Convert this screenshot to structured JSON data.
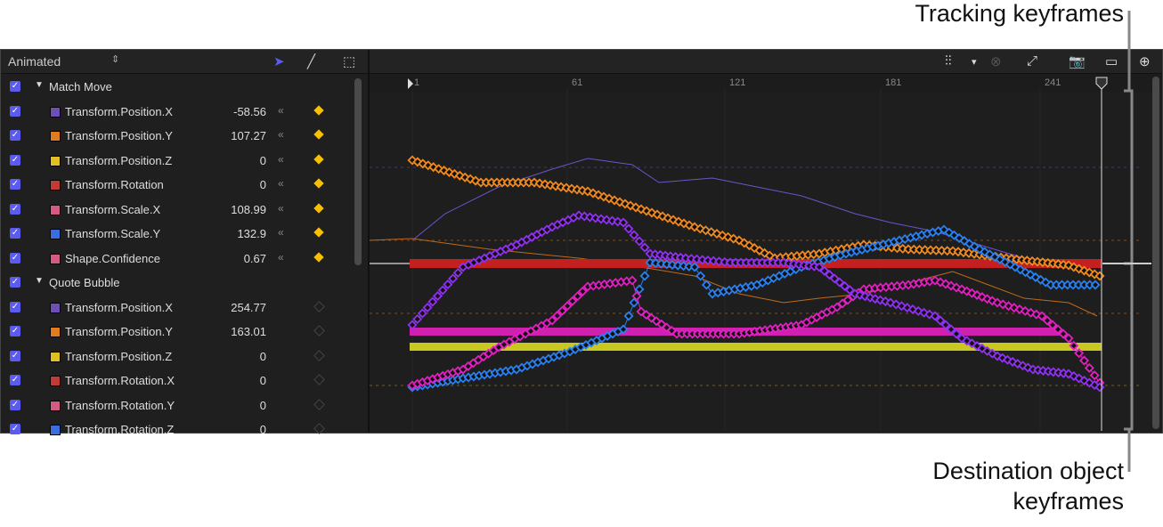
{
  "header": {
    "filter": "Animated"
  },
  "groups": [
    {
      "name": "Match Move",
      "rows": [
        {
          "label": "Transform.Position.X",
          "value": "-58.56",
          "color": "#6e4fb5",
          "keyframe": "filled"
        },
        {
          "label": "Transform.Position.Y",
          "value": "107.27",
          "color": "#e07b20",
          "keyframe": "filled"
        },
        {
          "label": "Transform.Position.Z",
          "value": "0",
          "color": "#e0c020",
          "keyframe": "filled"
        },
        {
          "label": "Transform.Rotation",
          "value": "0",
          "color": "#c23a36",
          "keyframe": "filled"
        },
        {
          "label": "Transform.Scale.X",
          "value": "108.99",
          "color": "#d35a80",
          "keyframe": "filled"
        },
        {
          "label": "Transform.Scale.Y",
          "value": "132.9",
          "color": "#3a6ee0",
          "keyframe": "filled"
        },
        {
          "label": "Shape.Confidence",
          "value": "0.67",
          "color": "#d35a80",
          "keyframe": "filled"
        }
      ]
    },
    {
      "name": "Quote Bubble",
      "rows": [
        {
          "label": "Transform.Position.X",
          "value": "254.77",
          "color": "#6e4fb5",
          "keyframe": "empty"
        },
        {
          "label": "Transform.Position.Y",
          "value": "163.01",
          "color": "#e07b20",
          "keyframe": "empty"
        },
        {
          "label": "Transform.Position.Z",
          "value": "0",
          "color": "#e0c020",
          "keyframe": "empty"
        },
        {
          "label": "Transform.Rotation.X",
          "value": "0",
          "color": "#c23a36",
          "keyframe": "empty"
        },
        {
          "label": "Transform.Rotation.Y",
          "value": "0",
          "color": "#d35a80",
          "keyframe": "empty"
        },
        {
          "label": "Transform.Rotation.Z",
          "value": "0",
          "color": "#3a6ee0",
          "keyframe": "empty"
        }
      ]
    }
  ],
  "ruler": [
    "1",
    "61",
    "121",
    "181",
    "241"
  ],
  "annotations": {
    "tracking": "Tracking keyframes",
    "destination_line1": "Destination object",
    "destination_line2": "keyframes"
  }
}
